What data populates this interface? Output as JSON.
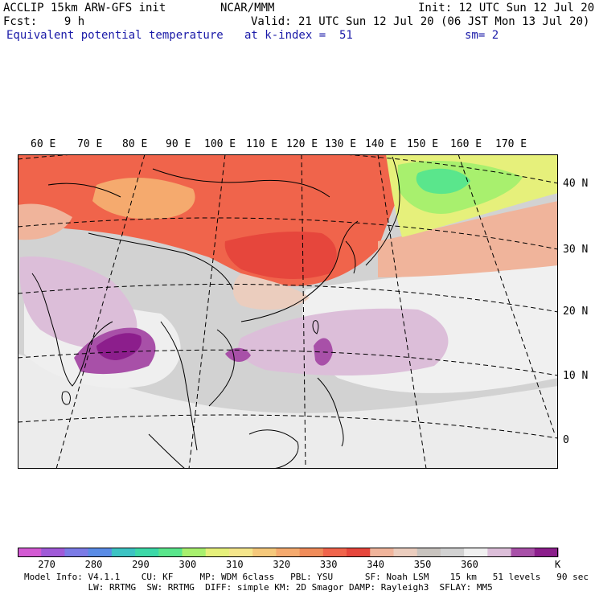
{
  "header": {
    "model_line": "ACCLIP 15km ARW-GFS init",
    "center": "NCAR/MMM",
    "init": "Init: 12 UTC Sun 12 Jul 20",
    "fcst": "Fcst:    9 h",
    "valid": "Valid: 21 UTC Sun 12 Jul 20 (06 JST Mon 13 Jul 20)",
    "field": "Equivalent potential temperature",
    "level": "at k-index =  51",
    "smooth": "sm= 2"
  },
  "map": {
    "lon_labels": [
      "60 E",
      "70 E",
      "80 E",
      "90 E",
      "100 E",
      "110 E",
      "120 E",
      "130 E",
      "140 E",
      "150 E",
      "160 E",
      "170 E"
    ],
    "lat_labels": [
      "40 N",
      "30 N",
      "20 N",
      "10 N",
      "0"
    ]
  },
  "colorbar": {
    "colors": [
      "#d35ad3",
      "#a05ad8",
      "#7b7be6",
      "#5a8ce6",
      "#3cc3c3",
      "#3cd9a8",
      "#5ae68c",
      "#a8f06e",
      "#e6f07b",
      "#f5e68c",
      "#f5c87b",
      "#f5aa6e",
      "#f08c5a",
      "#f0644b",
      "#e6463c",
      "#f0b49b",
      "#ebcdbe",
      "#c8c3be",
      "#d2d2d2",
      "#f0f0f0",
      "#dcbed9",
      "#a850a8",
      "#8c1e8c"
    ],
    "tick_labels": [
      "270",
      "280",
      "290",
      "300",
      "310",
      "320",
      "330",
      "340",
      "350",
      "360"
    ],
    "unit": "K"
  },
  "model_info": {
    "line1": "Model Info: V4.1.1    CU: KF     MP: WDM 6class   PBL: YSU      SF: Noah LSM    15 km   51 levels   90 sec",
    "line2": "            LW: RRTMG  SW: RRTMG  DIFF: simple KM: 2D Smagor DAMP: Rayleigh3  SFLAY: MM5"
  }
}
